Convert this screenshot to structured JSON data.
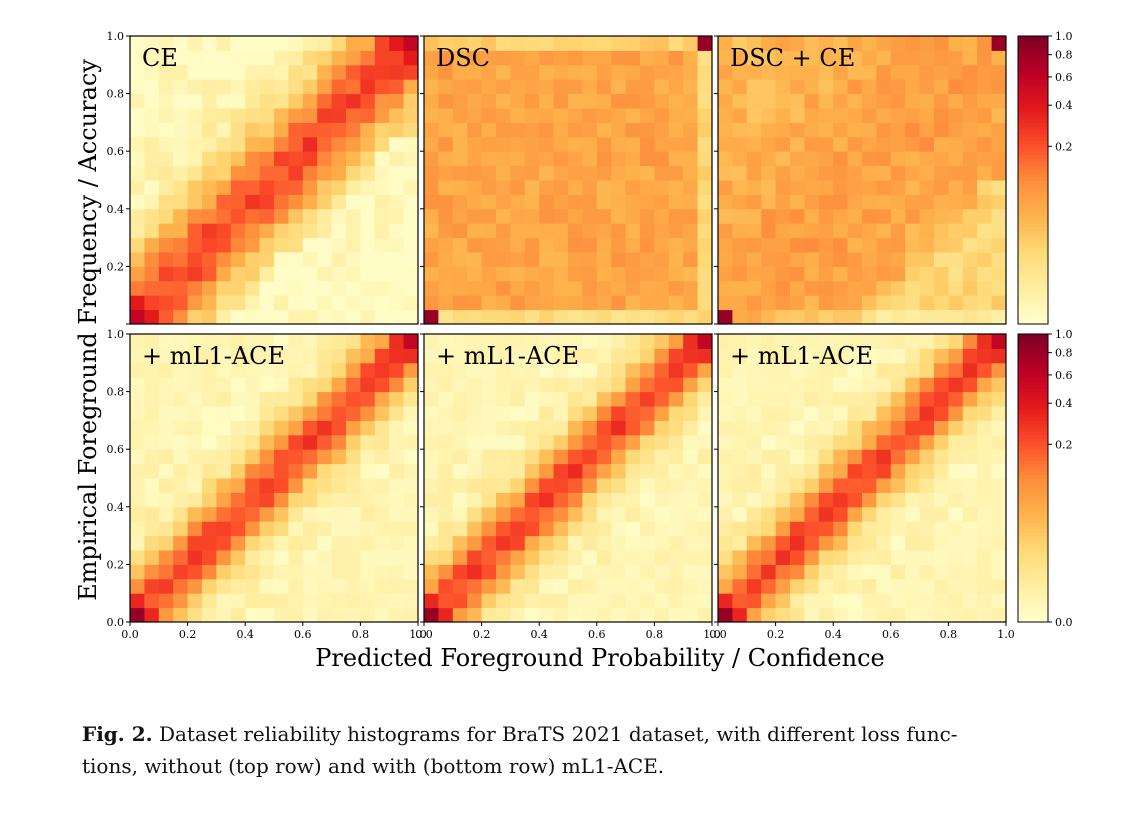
{
  "chart_data": {
    "type": "heatmap",
    "grid_bins": 20,
    "xlabel": "Predicted Foreground Probability / Confidence",
    "ylabel": "Empirical Foreground Frequency / Accuracy",
    "xlim": [
      0.0,
      1.0
    ],
    "ylim": [
      0.0,
      1.0
    ],
    "x_ticks_bottom": [
      "0.0",
      "0.2",
      "0.4",
      "0.6",
      "0.8",
      "1.0"
    ],
    "y_ticks": [
      "0.2",
      "0.4",
      "0.6",
      "0.8",
      "1.0"
    ],
    "y_ticks_bottom_row": [
      "0.0",
      "0.2",
      "0.4",
      "0.6",
      "0.8",
      "1.0"
    ],
    "colormap": {
      "name": "YlOrRd",
      "stops": [
        "#ffffcc",
        "#ffeda0",
        "#fed976",
        "#feb24c",
        "#fd8d3c",
        "#fc4e2a",
        "#e31a1c",
        "#bd0026",
        "#800026"
      ]
    },
    "colorbar_top": {
      "ticks": [
        "1.0",
        "0.8",
        "0.6",
        "0.4",
        "0.2"
      ]
    },
    "colorbar_bottom": {
      "ticks": [
        "1.0",
        "0.8",
        "0.6",
        "0.4",
        "0.2",
        "0.0"
      ]
    },
    "panels": [
      {
        "label": "CE",
        "row": 0,
        "col": 0,
        "pattern": "ce"
      },
      {
        "label": "DSC",
        "row": 0,
        "col": 1,
        "pattern": "dsc"
      },
      {
        "label": "DSC + CE",
        "row": 0,
        "col": 2,
        "pattern": "dscce"
      },
      {
        "label": "+ mL1-ACE",
        "row": 1,
        "col": 0,
        "pattern": "diag"
      },
      {
        "label": "+ mL1-ACE",
        "row": 1,
        "col": 1,
        "pattern": "diag"
      },
      {
        "label": "+ mL1-ACE",
        "row": 1,
        "col": 2,
        "pattern": "diag"
      }
    ]
  },
  "caption": {
    "prefix": "Fig. 2.",
    "line1": " Dataset reliability histograms for BraTS 2021 dataset, with different loss func-",
    "line2": "tions, without (top row) and with (bottom row) mL1-ACE."
  }
}
